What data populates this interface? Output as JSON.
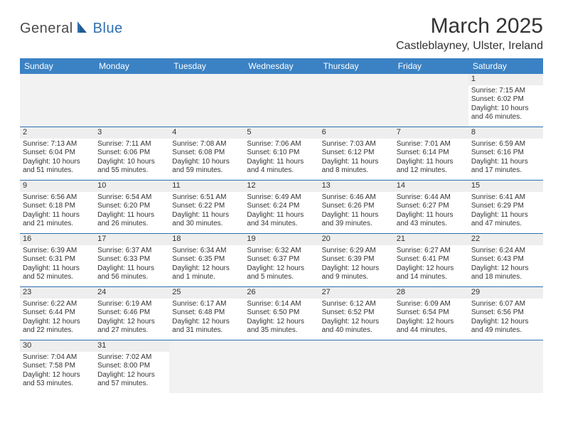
{
  "logo": {
    "text1": "General",
    "text2": "Blue"
  },
  "title": "March 2025",
  "location": "Castleblayney, Ulster, Ireland",
  "headers": [
    "Sunday",
    "Monday",
    "Tuesday",
    "Wednesday",
    "Thursday",
    "Friday",
    "Saturday"
  ],
  "colors": {
    "header_bg": "#3b82c4",
    "header_text": "#ffffff",
    "grid_line": "#2f6fb0",
    "daynum_bg": "#eeeeee",
    "blank_bg": "#f2f2f2",
    "text": "#333333"
  },
  "weeks": [
    [
      {
        "blank": true
      },
      {
        "blank": true
      },
      {
        "blank": true
      },
      {
        "blank": true
      },
      {
        "blank": true
      },
      {
        "blank": true
      },
      {
        "num": "1",
        "sunrise": "Sunrise: 7:15 AM",
        "sunset": "Sunset: 6:02 PM",
        "daylight": "Daylight: 10 hours and 46 minutes."
      }
    ],
    [
      {
        "num": "2",
        "sunrise": "Sunrise: 7:13 AM",
        "sunset": "Sunset: 6:04 PM",
        "daylight": "Daylight: 10 hours and 51 minutes."
      },
      {
        "num": "3",
        "sunrise": "Sunrise: 7:11 AM",
        "sunset": "Sunset: 6:06 PM",
        "daylight": "Daylight: 10 hours and 55 minutes."
      },
      {
        "num": "4",
        "sunrise": "Sunrise: 7:08 AM",
        "sunset": "Sunset: 6:08 PM",
        "daylight": "Daylight: 10 hours and 59 minutes."
      },
      {
        "num": "5",
        "sunrise": "Sunrise: 7:06 AM",
        "sunset": "Sunset: 6:10 PM",
        "daylight": "Daylight: 11 hours and 4 minutes."
      },
      {
        "num": "6",
        "sunrise": "Sunrise: 7:03 AM",
        "sunset": "Sunset: 6:12 PM",
        "daylight": "Daylight: 11 hours and 8 minutes."
      },
      {
        "num": "7",
        "sunrise": "Sunrise: 7:01 AM",
        "sunset": "Sunset: 6:14 PM",
        "daylight": "Daylight: 11 hours and 12 minutes."
      },
      {
        "num": "8",
        "sunrise": "Sunrise: 6:59 AM",
        "sunset": "Sunset: 6:16 PM",
        "daylight": "Daylight: 11 hours and 17 minutes."
      }
    ],
    [
      {
        "num": "9",
        "sunrise": "Sunrise: 6:56 AM",
        "sunset": "Sunset: 6:18 PM",
        "daylight": "Daylight: 11 hours and 21 minutes."
      },
      {
        "num": "10",
        "sunrise": "Sunrise: 6:54 AM",
        "sunset": "Sunset: 6:20 PM",
        "daylight": "Daylight: 11 hours and 26 minutes."
      },
      {
        "num": "11",
        "sunrise": "Sunrise: 6:51 AM",
        "sunset": "Sunset: 6:22 PM",
        "daylight": "Daylight: 11 hours and 30 minutes."
      },
      {
        "num": "12",
        "sunrise": "Sunrise: 6:49 AM",
        "sunset": "Sunset: 6:24 PM",
        "daylight": "Daylight: 11 hours and 34 minutes."
      },
      {
        "num": "13",
        "sunrise": "Sunrise: 6:46 AM",
        "sunset": "Sunset: 6:26 PM",
        "daylight": "Daylight: 11 hours and 39 minutes."
      },
      {
        "num": "14",
        "sunrise": "Sunrise: 6:44 AM",
        "sunset": "Sunset: 6:27 PM",
        "daylight": "Daylight: 11 hours and 43 minutes."
      },
      {
        "num": "15",
        "sunrise": "Sunrise: 6:41 AM",
        "sunset": "Sunset: 6:29 PM",
        "daylight": "Daylight: 11 hours and 47 minutes."
      }
    ],
    [
      {
        "num": "16",
        "sunrise": "Sunrise: 6:39 AM",
        "sunset": "Sunset: 6:31 PM",
        "daylight": "Daylight: 11 hours and 52 minutes."
      },
      {
        "num": "17",
        "sunrise": "Sunrise: 6:37 AM",
        "sunset": "Sunset: 6:33 PM",
        "daylight": "Daylight: 11 hours and 56 minutes."
      },
      {
        "num": "18",
        "sunrise": "Sunrise: 6:34 AM",
        "sunset": "Sunset: 6:35 PM",
        "daylight": "Daylight: 12 hours and 1 minute."
      },
      {
        "num": "19",
        "sunrise": "Sunrise: 6:32 AM",
        "sunset": "Sunset: 6:37 PM",
        "daylight": "Daylight: 12 hours and 5 minutes."
      },
      {
        "num": "20",
        "sunrise": "Sunrise: 6:29 AM",
        "sunset": "Sunset: 6:39 PM",
        "daylight": "Daylight: 12 hours and 9 minutes."
      },
      {
        "num": "21",
        "sunrise": "Sunrise: 6:27 AM",
        "sunset": "Sunset: 6:41 PM",
        "daylight": "Daylight: 12 hours and 14 minutes."
      },
      {
        "num": "22",
        "sunrise": "Sunrise: 6:24 AM",
        "sunset": "Sunset: 6:43 PM",
        "daylight": "Daylight: 12 hours and 18 minutes."
      }
    ],
    [
      {
        "num": "23",
        "sunrise": "Sunrise: 6:22 AM",
        "sunset": "Sunset: 6:44 PM",
        "daylight": "Daylight: 12 hours and 22 minutes."
      },
      {
        "num": "24",
        "sunrise": "Sunrise: 6:19 AM",
        "sunset": "Sunset: 6:46 PM",
        "daylight": "Daylight: 12 hours and 27 minutes."
      },
      {
        "num": "25",
        "sunrise": "Sunrise: 6:17 AM",
        "sunset": "Sunset: 6:48 PM",
        "daylight": "Daylight: 12 hours and 31 minutes."
      },
      {
        "num": "26",
        "sunrise": "Sunrise: 6:14 AM",
        "sunset": "Sunset: 6:50 PM",
        "daylight": "Daylight: 12 hours and 35 minutes."
      },
      {
        "num": "27",
        "sunrise": "Sunrise: 6:12 AM",
        "sunset": "Sunset: 6:52 PM",
        "daylight": "Daylight: 12 hours and 40 minutes."
      },
      {
        "num": "28",
        "sunrise": "Sunrise: 6:09 AM",
        "sunset": "Sunset: 6:54 PM",
        "daylight": "Daylight: 12 hours and 44 minutes."
      },
      {
        "num": "29",
        "sunrise": "Sunrise: 6:07 AM",
        "sunset": "Sunset: 6:56 PM",
        "daylight": "Daylight: 12 hours and 49 minutes."
      }
    ],
    [
      {
        "num": "30",
        "sunrise": "Sunrise: 7:04 AM",
        "sunset": "Sunset: 7:58 PM",
        "daylight": "Daylight: 12 hours and 53 minutes."
      },
      {
        "num": "31",
        "sunrise": "Sunrise: 7:02 AM",
        "sunset": "Sunset: 8:00 PM",
        "daylight": "Daylight: 12 hours and 57 minutes."
      },
      {
        "blank": true
      },
      {
        "blank": true
      },
      {
        "blank": true
      },
      {
        "blank": true
      },
      {
        "blank": true
      }
    ]
  ]
}
